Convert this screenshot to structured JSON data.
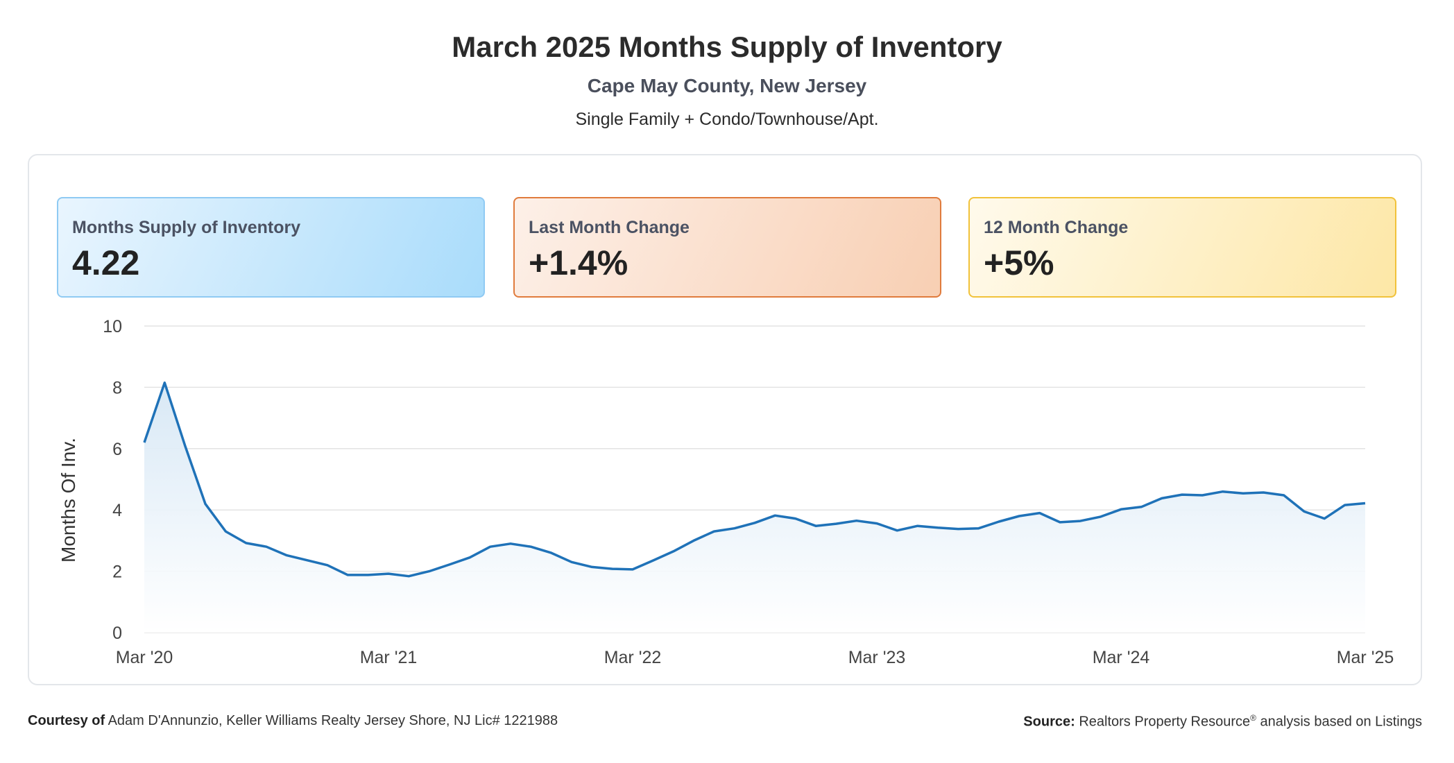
{
  "header": {
    "title": "March 2025 Months Supply of Inventory",
    "subtitle": "Cape May County, New Jersey",
    "segment": "Single Family + Condo/Townhouse/Apt."
  },
  "cards": [
    {
      "label": "Months Supply of Inventory",
      "value": "4.22"
    },
    {
      "label": "Last Month Change",
      "value": "+1.4%"
    },
    {
      "label": "12 Month Change",
      "value": "+5%"
    }
  ],
  "footer": {
    "courtesy_label": "Courtesy of",
    "courtesy_text": "Adam D'Annunzio, Keller Williams Realty Jersey Shore, NJ Lic# 1221988",
    "source_label": "Source:",
    "source_text": "Realtors Property Resource",
    "source_reg": "®",
    "source_tail": " analysis based on Listings"
  },
  "colors": {
    "line": "#1f72b8",
    "fill_top": "#d6e7f5",
    "grid": "#e3e3e3"
  },
  "chart_data": {
    "type": "area",
    "title": "",
    "xlabel": "",
    "ylabel": "Months Of Inv.",
    "ylim": [
      0,
      10
    ],
    "yticks": [
      0,
      2,
      4,
      6,
      8,
      10
    ],
    "x_tick_labels": [
      "Mar '20",
      "Mar '21",
      "Mar '22",
      "Mar '23",
      "Mar '24",
      "Mar '25"
    ],
    "grid": true,
    "series": [
      {
        "x": [
          "Mar '20",
          "Apr '20",
          "May '20",
          "Jun '20",
          "Jul '20",
          "Aug '20",
          "Sep '20",
          "Oct '20",
          "Nov '20",
          "Dec '20",
          "Jan '21",
          "Feb '21",
          "Mar '21",
          "Apr '21",
          "May '21",
          "Jun '21",
          "Jul '21",
          "Aug '21",
          "Sep '21",
          "Oct '21",
          "Nov '21",
          "Dec '21",
          "Jan '22",
          "Feb '22",
          "Mar '22",
          "Apr '22",
          "May '22",
          "Jun '22",
          "Jul '22",
          "Aug '22",
          "Sep '22",
          "Oct '22",
          "Nov '22",
          "Dec '22",
          "Jan '23",
          "Feb '23",
          "Mar '23",
          "Apr '23",
          "May '23",
          "Jun '23",
          "Jul '23",
          "Aug '23",
          "Sep '23",
          "Oct '23",
          "Nov '23",
          "Dec '23",
          "Jan '24",
          "Feb '24",
          "Mar '24",
          "Apr '24",
          "May '24",
          "Jun '24",
          "Jul '24",
          "Aug '24",
          "Sep '24",
          "Oct '24",
          "Nov '24",
          "Dec '24",
          "Jan '25",
          "Feb '25",
          "Mar '25"
        ],
        "values": [
          6.2,
          8.15,
          6.1,
          4.2,
          3.3,
          2.92,
          2.8,
          2.52,
          2.36,
          2.2,
          1.88,
          1.88,
          1.92,
          1.84,
          2.0,
          2.22,
          2.45,
          2.8,
          2.9,
          2.8,
          2.6,
          2.3,
          2.14,
          2.08,
          2.06,
          2.35,
          2.65,
          3.0,
          3.3,
          3.4,
          3.58,
          3.82,
          3.72,
          3.48,
          3.55,
          3.65,
          3.56,
          3.33,
          3.48,
          3.42,
          3.38,
          3.4,
          3.62,
          3.8,
          3.9,
          3.6,
          3.64,
          3.78,
          4.02,
          4.1,
          4.38,
          4.5,
          4.48,
          4.6,
          4.54,
          4.57,
          4.48,
          3.95,
          3.72,
          4.16,
          4.22
        ]
      }
    ]
  }
}
